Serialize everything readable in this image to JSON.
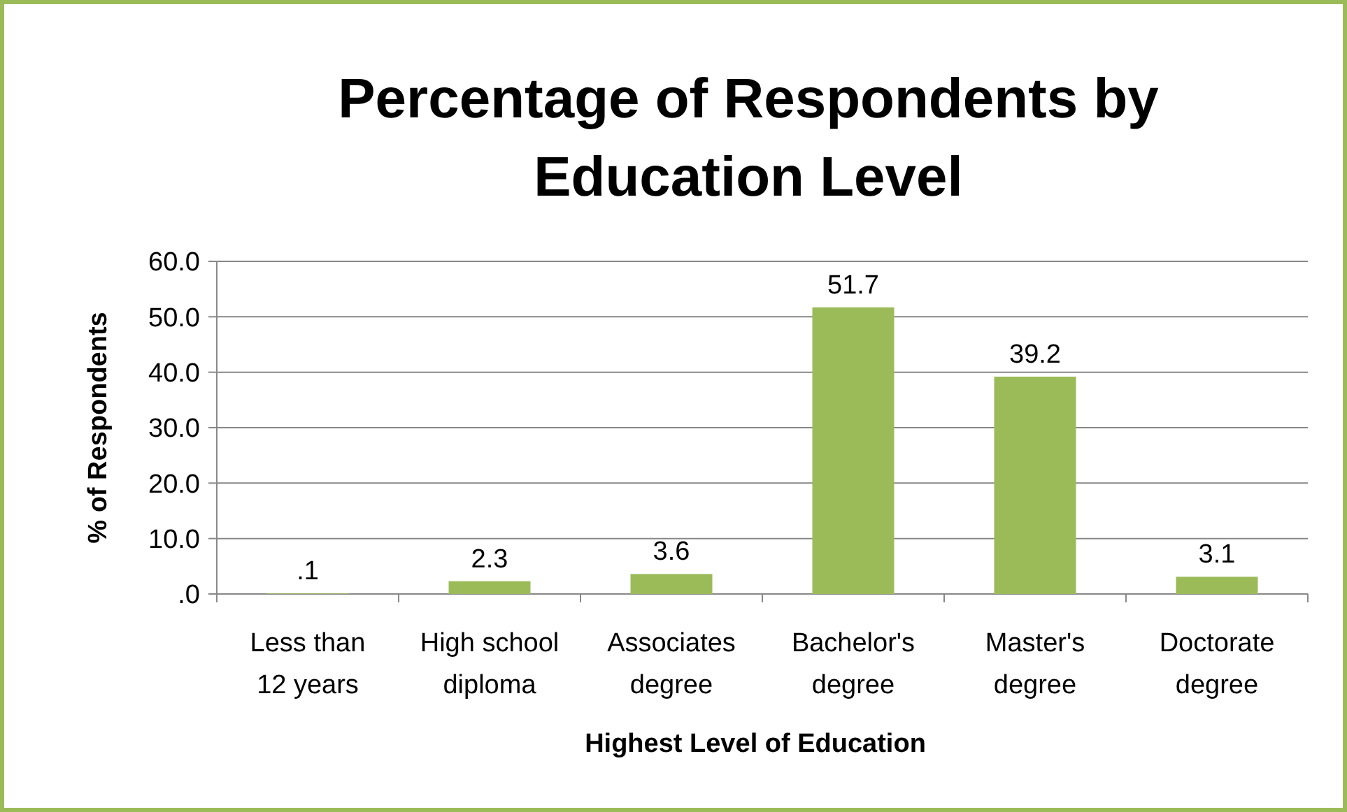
{
  "chart_data": {
    "type": "bar",
    "title": "Percentage of Respondents by Education Level",
    "xlabel": "Highest Level of Education",
    "ylabel": "% of Respondents",
    "categories": [
      "Less than 12 years",
      "High school diploma",
      "Associates degree",
      "Bachelor's degree",
      "Master's degree",
      "Doctorate degree"
    ],
    "values": [
      0.1,
      2.3,
      3.6,
      51.7,
      39.2,
      3.1
    ],
    "value_labels": [
      ".1",
      "2.3",
      "3.6",
      "51.7",
      "39.2",
      "3.1"
    ],
    "color": "#9bbb59",
    "ylim": [
      0,
      60
    ],
    "yticks": [
      {
        "value": 0,
        "label": ".0"
      },
      {
        "value": 10,
        "label": "10.0"
      },
      {
        "value": 20,
        "label": "20.0"
      },
      {
        "value": 30,
        "label": "30.0"
      },
      {
        "value": 40,
        "label": "40.0"
      },
      {
        "value": 50,
        "label": "50.0"
      },
      {
        "value": 60,
        "label": "60.0"
      }
    ],
    "grid": "y"
  }
}
